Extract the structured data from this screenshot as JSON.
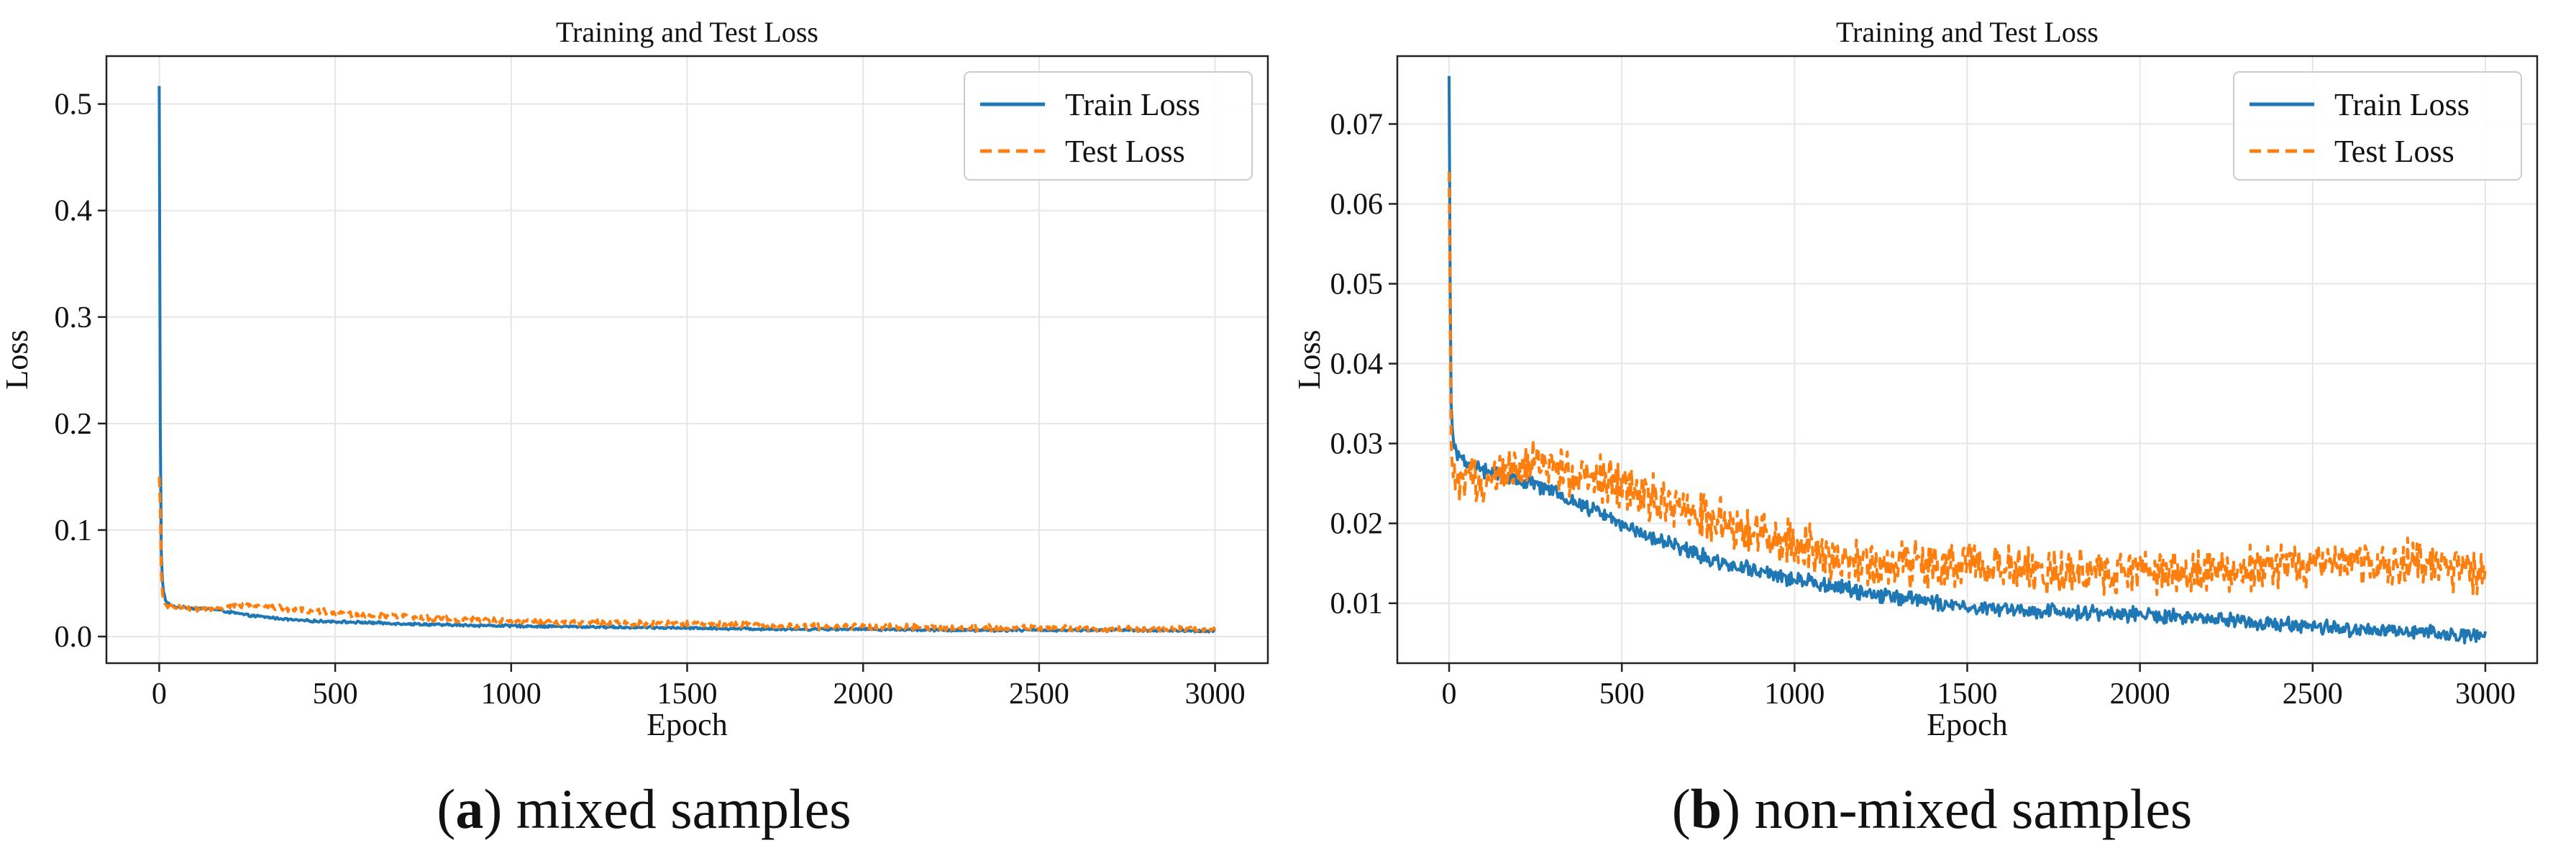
{
  "colors": {
    "train": "#1f77b4",
    "test": "#ff7f0e",
    "grid": "#e6e6e6",
    "axis": "#222222"
  },
  "chart_data": [
    {
      "type": "line",
      "title": "Training and Test Loss",
      "xlabel": "Epoch",
      "ylabel": "Loss",
      "xlim": [
        -150,
        3150
      ],
      "ylim": [
        -0.025,
        0.545
      ],
      "xticks": [
        0,
        500,
        1000,
        1500,
        2000,
        2500,
        3000
      ],
      "yticks": [
        0.0,
        0.1,
        0.2,
        0.3,
        0.4,
        0.5
      ],
      "xtick_labels": [
        "0",
        "500",
        "1000",
        "1500",
        "2000",
        "2500",
        "3000"
      ],
      "ytick_labels": [
        "0.0",
        "0.1",
        "0.2",
        "0.3",
        "0.4",
        "0.5"
      ],
      "grid": true,
      "legend": "top-right",
      "caption": {
        "letter": "a",
        "text": "mixed samples"
      },
      "series": [
        {
          "name": "Train Loss",
          "style": "solid",
          "x": [
            0,
            3,
            6,
            10,
            20,
            40,
            80,
            150,
            250,
            400,
            600,
            800,
            1000,
            1250,
            1500,
            1750,
            2000,
            2250,
            2500,
            2750,
            3000
          ],
          "y": [
            0.517,
            0.2,
            0.08,
            0.045,
            0.032,
            0.028,
            0.027,
            0.026,
            0.02,
            0.015,
            0.013,
            0.011,
            0.01,
            0.009,
            0.008,
            0.007,
            0.007,
            0.006,
            0.006,
            0.006,
            0.005
          ],
          "noise": 0.001
        },
        {
          "name": "Test Loss",
          "style": "dashed",
          "x": [
            0,
            3,
            6,
            10,
            20,
            40,
            80,
            150,
            250,
            400,
            600,
            800,
            1000,
            1250,
            1500,
            1750,
            2000,
            2250,
            2500,
            2750,
            3000
          ],
          "y": [
            0.15,
            0.12,
            0.06,
            0.035,
            0.028,
            0.027,
            0.026,
            0.026,
            0.03,
            0.025,
            0.02,
            0.017,
            0.015,
            0.013,
            0.012,
            0.01,
            0.009,
            0.008,
            0.008,
            0.007,
            0.007
          ],
          "noise": 0.0025
        }
      ]
    },
    {
      "type": "line",
      "title": "Training and Test Loss",
      "xlabel": "Epoch",
      "ylabel": "Loss",
      "xlim": [
        -150,
        3150
      ],
      "ylim": [
        0.0025,
        0.0785
      ],
      "xticks": [
        0,
        500,
        1000,
        1500,
        2000,
        2500,
        3000
      ],
      "yticks": [
        0.01,
        0.02,
        0.03,
        0.04,
        0.05,
        0.06,
        0.07
      ],
      "xtick_labels": [
        "0",
        "500",
        "1000",
        "1500",
        "2000",
        "2500",
        "3000"
      ],
      "ytick_labels": [
        "0.01",
        "0.02",
        "0.03",
        "0.04",
        "0.05",
        "0.06",
        "0.07"
      ],
      "grid": true,
      "legend": "top-right",
      "caption": {
        "letter": "b",
        "text": "non-mixed samples"
      },
      "series": [
        {
          "name": "Train Loss",
          "style": "solid",
          "x": [
            0,
            3,
            6,
            10,
            20,
            40,
            80,
            150,
            250,
            400,
            600,
            800,
            1000,
            1250,
            1500,
            1750,
            2000,
            2250,
            2500,
            2750,
            3000
          ],
          "y": [
            0.076,
            0.05,
            0.035,
            0.031,
            0.029,
            0.028,
            0.027,
            0.026,
            0.025,
            0.022,
            0.018,
            0.015,
            0.013,
            0.011,
            0.0095,
            0.009,
            0.0085,
            0.008,
            0.007,
            0.0065,
            0.006
          ],
          "noise": 0.0008
        },
        {
          "name": "Test Loss",
          "style": "dashed",
          "x": [
            0,
            3,
            6,
            10,
            20,
            40,
            80,
            150,
            250,
            400,
            600,
            800,
            1000,
            1250,
            1500,
            1750,
            2000,
            2250,
            2500,
            2750,
            3000
          ],
          "y": [
            0.064,
            0.045,
            0.03,
            0.026,
            0.025,
            0.025,
            0.025,
            0.026,
            0.028,
            0.026,
            0.023,
            0.02,
            0.017,
            0.015,
            0.015,
            0.014,
            0.014,
            0.014,
            0.015,
            0.015,
            0.014
          ],
          "noise": 0.0025
        }
      ]
    }
  ]
}
